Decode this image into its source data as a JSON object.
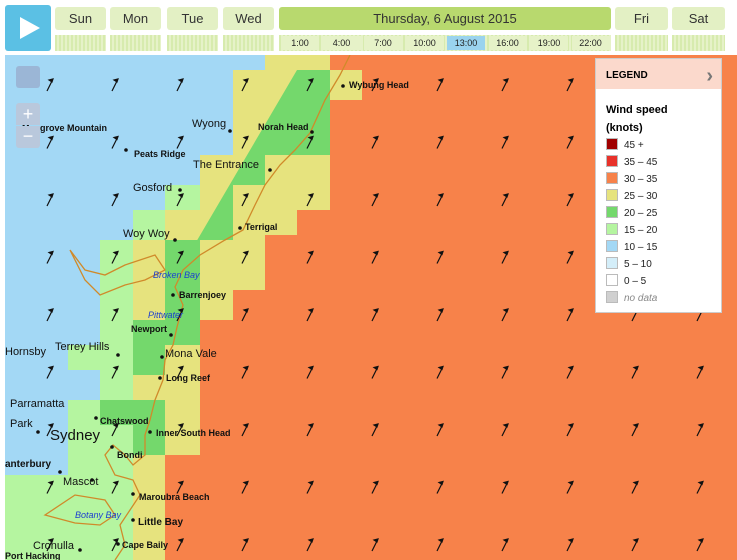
{
  "header": {
    "days_before": [
      "Sun",
      "Mon",
      "Tue",
      "Wed"
    ],
    "current_day": "Thursday, 6 August 2015",
    "days_after": [
      "Fri",
      "Sat"
    ],
    "times": [
      "1:00",
      "4:00",
      "7:00",
      "10:00",
      "13:00",
      "16:00",
      "19:00",
      "22:00"
    ]
  },
  "legend": {
    "title": "LEGEND",
    "heading": [
      "Wind speed",
      "(knots)"
    ],
    "items": [
      {
        "label": "45 +",
        "color": "#a00000"
      },
      {
        "label": "35 – 45",
        "color": "#e8322a"
      },
      {
        "label": "30 – 35",
        "color": "#f7824a"
      },
      {
        "label": "25 – 30",
        "color": "#e6e37e"
      },
      {
        "label": "20 – 25",
        "color": "#74d86c"
      },
      {
        "label": "15 – 20",
        "color": "#b5f5a0"
      },
      {
        "label": "10 – 15",
        "color": "#a3d8f5"
      },
      {
        "label": "5 – 10",
        "color": "#d4eef9"
      },
      {
        "label": "0 – 5",
        "color": "#ffffff"
      },
      {
        "label": "no data",
        "color": "#d0d0d0"
      }
    ]
  },
  "places": [
    "Wybung Head",
    "Mangrove Mountain",
    "Wyong",
    "Norah Head",
    "Peats Ridge",
    "The Entrance",
    "Gosford",
    "Terrigal",
    "Woy Woy",
    "Broken Bay",
    "Barrenjoey",
    "Pittwater",
    "Newport",
    "Hornsby",
    "Terrey Hills",
    "Mona Vale",
    "Long Reef",
    "Parramatta",
    "Park",
    "Chatswood",
    "Sydney",
    "Inner South Head",
    "Bondi",
    "anterbury",
    "Mascot",
    "Maroubra Beach",
    "Botany Bay",
    "Little Bay",
    "Cronulla",
    "Cape Baily",
    "Port Hacking"
  ]
}
